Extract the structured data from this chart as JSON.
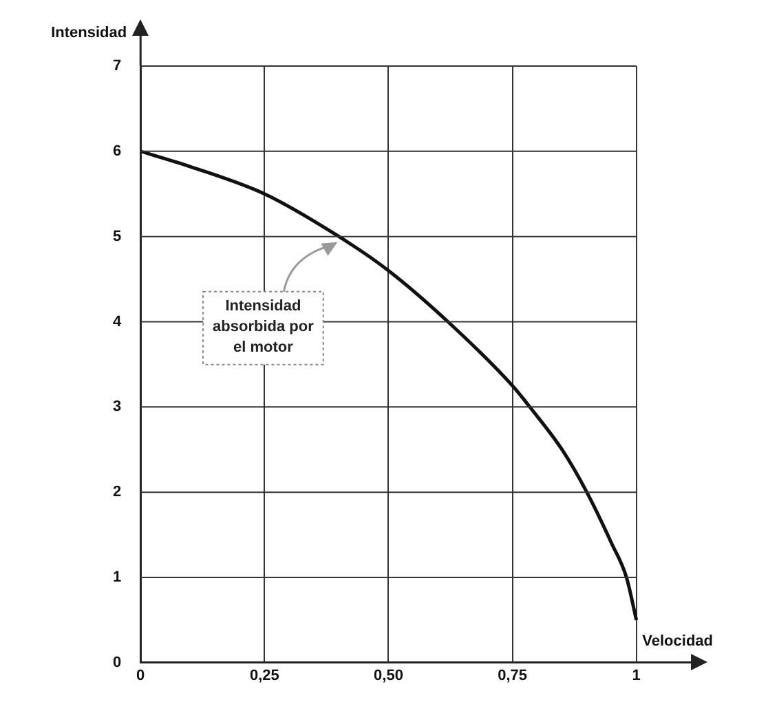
{
  "chart_data": {
    "type": "line",
    "xlabel": "Velocidad",
    "ylabel": "Intensidad",
    "x": [
      0,
      0.1,
      0.25,
      0.4,
      0.5,
      0.62,
      0.75,
      0.785,
      0.85,
      0.9,
      0.95,
      0.98,
      1
    ],
    "series": [
      {
        "color": "#111111",
        "values": [
          6,
          5.82,
          5.5,
          5,
          4.6,
          4,
          3.25,
          3,
          2.5,
          2,
          1.4,
          1,
          0.5
        ]
      }
    ],
    "xlim": [
      0,
      1.11
    ],
    "xticks": [
      0,
      {
        "value": 0.25,
        "label": "0,25"
      },
      {
        "value": 0.5,
        "label": "0,50"
      },
      {
        "value": 0.75,
        "label": "0,75"
      },
      1
    ],
    "ylim": [
      0,
      7
    ],
    "yticks": [
      0,
      1,
      2,
      3,
      4,
      5,
      6,
      7
    ],
    "grid": true,
    "legend": false,
    "marker": "none",
    "line_style": "solid",
    "annotations": [
      {
        "text": "Intensidad absorbida por el motor",
        "x": 0.4,
        "y": 5
      }
    ]
  }
}
